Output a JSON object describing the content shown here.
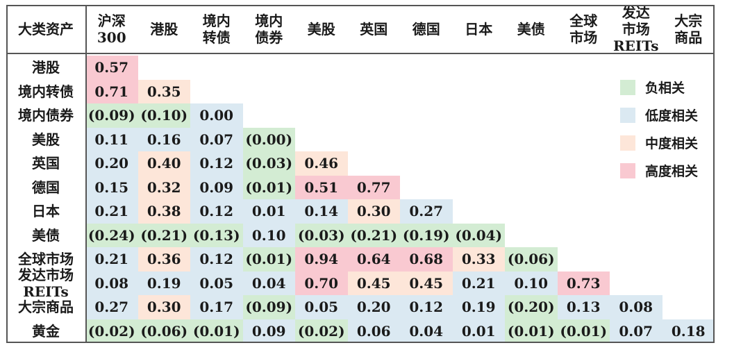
{
  "chart_data": {
    "type": "heatmap",
    "corner_label": "大类资产",
    "columns": [
      "沪深\n300",
      "港股",
      "境内\n转债",
      "境内\n债券",
      "美股",
      "英国",
      "德国",
      "日本",
      "美债",
      "全球\n市场",
      "发达\n市场\nREITs",
      "大宗\n商品"
    ],
    "rows": [
      "港股",
      "境内转债",
      "境内债券",
      "美股",
      "英国",
      "德国",
      "日本",
      "美债",
      "全球市场",
      "发达市场\nREITs",
      "大宗商品",
      "黄金"
    ],
    "values": [
      [
        "0.57"
      ],
      [
        "0.71",
        "0.35"
      ],
      [
        "(0.09)",
        "(0.10)",
        "0.00"
      ],
      [
        "0.11",
        "0.16",
        "0.07",
        "(0.00)"
      ],
      [
        "0.20",
        "0.40",
        "0.12",
        "(0.03)",
        "0.46"
      ],
      [
        "0.15",
        "0.32",
        "0.09",
        "(0.01)",
        "0.51",
        "0.77"
      ],
      [
        "0.21",
        "0.38",
        "0.12",
        "0.01",
        "0.14",
        "0.30",
        "0.27"
      ],
      [
        "(0.24)",
        "(0.21)",
        "(0.13)",
        "0.10",
        "(0.03)",
        "(0.21)",
        "(0.19)",
        "(0.04)"
      ],
      [
        "0.21",
        "0.36",
        "0.12",
        "(0.01)",
        "0.94",
        "0.64",
        "0.68",
        "0.33",
        "(0.06)"
      ],
      [
        "0.08",
        "0.19",
        "0.05",
        "0.04",
        "0.70",
        "0.45",
        "0.45",
        "0.21",
        "0.10",
        "0.73"
      ],
      [
        "0.27",
        "0.30",
        "0.17",
        "(0.09)",
        "0.05",
        "0.20",
        "0.12",
        "0.19",
        "(0.20)",
        "0.13",
        "0.08"
      ],
      [
        "(0.02)",
        "(0.06)",
        "(0.01)",
        "0.09",
        "(0.02)",
        "0.06",
        "0.04",
        "0.01",
        "(0.01)",
        "(0.01)",
        "0.07",
        "0.18"
      ]
    ],
    "legend": [
      {
        "label": "负相关",
        "color": "#d3ecd3"
      },
      {
        "label": "低度相关",
        "color": "#dbe9f2"
      },
      {
        "label": "中度相关",
        "color": "#fde6d9"
      },
      {
        "label": "高度相关",
        "color": "#f9c9d1"
      }
    ],
    "legend_position": "top-right"
  }
}
